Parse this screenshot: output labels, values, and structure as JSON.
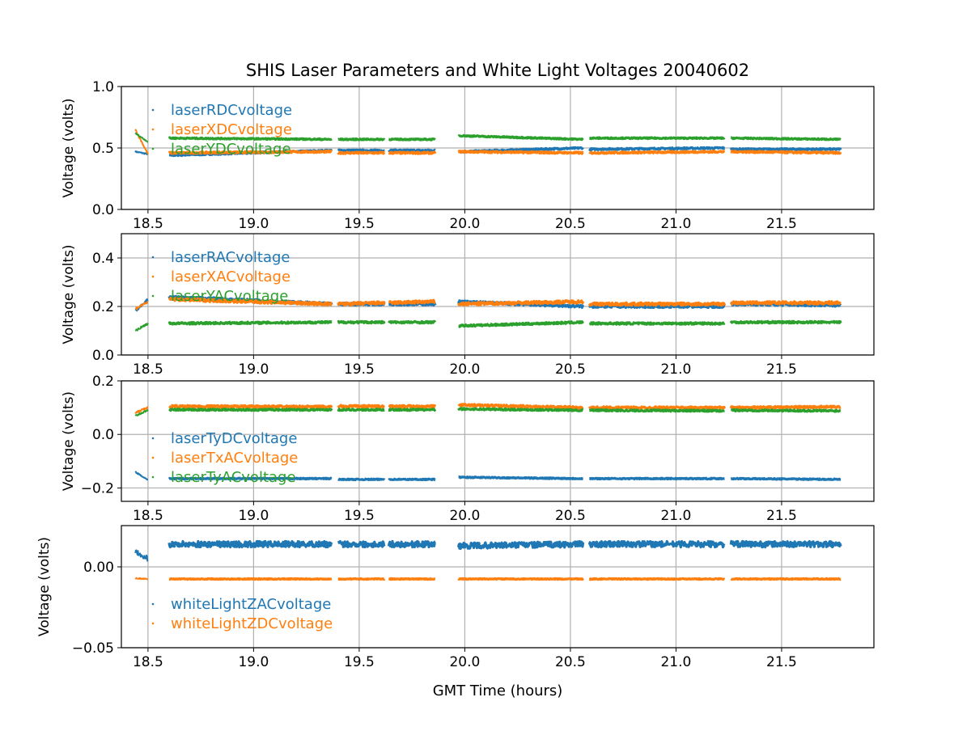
{
  "chart_data": {
    "type": "scatter",
    "title": "SHIS Laser Parameters and White Light Voltages 20040602",
    "xlabel": "GMT Time (hours)",
    "xlim": [
      18.374,
      21.937
    ],
    "xticks": [
      "18.5",
      "19.0",
      "19.5",
      "20.0",
      "20.5",
      "21.0",
      "21.5"
    ],
    "xtick_values": [
      18.5,
      19.0,
      19.5,
      20.0,
      20.5,
      21.0,
      21.5
    ],
    "grid": true,
    "legend_position": "upper-left",
    "segments": [
      [
        18.44,
        18.5
      ],
      [
        18.6,
        19.37
      ],
      [
        19.4,
        19.62
      ],
      [
        19.64,
        19.86
      ],
      [
        19.97,
        20.56
      ],
      [
        20.59,
        21.23
      ],
      [
        21.26,
        21.78
      ]
    ],
    "panels": [
      {
        "ylabel": "Voltage (volts)",
        "ylim": [
          0.0,
          1.0
        ],
        "yticks": [
          "0.0",
          "0.5",
          "1.0"
        ],
        "ytick_values": [
          0.0,
          0.5,
          1.0
        ],
        "series": [
          {
            "name": "laserRDCvoltage",
            "color": "#1f77b4",
            "values": [
              [
                0.47,
                0.45
              ],
              [
                0.44,
                0.48
              ],
              [
                0.48,
                0.48
              ],
              [
                0.48,
                0.48
              ],
              [
                0.47,
                0.5
              ],
              [
                0.49,
                0.5
              ],
              [
                0.49,
                0.49
              ]
            ],
            "noise": 0.006
          },
          {
            "name": "laserXDCvoltage",
            "color": "#ff7f0e",
            "values": [
              [
                0.65,
                0.45
              ],
              [
                0.46,
                0.47
              ],
              [
                0.46,
                0.46
              ],
              [
                0.46,
                0.46
              ],
              [
                0.47,
                0.46
              ],
              [
                0.46,
                0.47
              ],
              [
                0.47,
                0.46
              ]
            ],
            "noise": 0.007
          },
          {
            "name": "laserYDCvoltage",
            "color": "#2ca02c",
            "values": [
              [
                0.62,
                0.55
              ],
              [
                0.58,
                0.57
              ],
              [
                0.57,
                0.57
              ],
              [
                0.57,
                0.57
              ],
              [
                0.6,
                0.57
              ],
              [
                0.58,
                0.58
              ],
              [
                0.58,
                0.57
              ]
            ],
            "noise": 0.005
          }
        ]
      },
      {
        "ylabel": "Voltage (volts)",
        "ylim": [
          0.0,
          0.5
        ],
        "yticks": [
          "0.0",
          "0.2",
          "0.4"
        ],
        "ytick_values": [
          0.0,
          0.2,
          0.4
        ],
        "series": [
          {
            "name": "laserRACvoltage",
            "color": "#1f77b4",
            "values": [
              [
                0.18,
                0.23
              ],
              [
                0.24,
                0.21
              ],
              [
                0.21,
                0.21
              ],
              [
                0.21,
                0.21
              ],
              [
                0.22,
                0.2
              ],
              [
                0.2,
                0.2
              ],
              [
                0.21,
                0.205
              ]
            ],
            "noise": 0.005
          },
          {
            "name": "laserXACvoltage",
            "color": "#ff7f0e",
            "values": [
              [
                0.19,
                0.22
              ],
              [
                0.23,
                0.21
              ],
              [
                0.21,
                0.215
              ],
              [
                0.215,
                0.22
              ],
              [
                0.21,
                0.22
              ],
              [
                0.21,
                0.21
              ],
              [
                0.215,
                0.215
              ]
            ],
            "noise": 0.006
          },
          {
            "name": "laserYACvoltage",
            "color": "#2ca02c",
            "values": [
              [
                0.1,
                0.13
              ],
              [
                0.13,
                0.135
              ],
              [
                0.135,
                0.135
              ],
              [
                0.135,
                0.135
              ],
              [
                0.12,
                0.135
              ],
              [
                0.13,
                0.13
              ],
              [
                0.135,
                0.135
              ]
            ],
            "noise": 0.004
          }
        ]
      },
      {
        "ylabel": "Voltage (volts)",
        "ylim": [
          -0.25,
          0.2
        ],
        "yticks": [
          "−0.2",
          "0.0",
          "0.2"
        ],
        "ytick_values": [
          -0.2,
          0.0,
          0.2
        ],
        "series": [
          {
            "name": "laserTyDCvoltage",
            "color": "#1f77b4",
            "values": [
              [
                -0.14,
                -0.17
              ],
              [
                -0.165,
                -0.165
              ],
              [
                -0.168,
                -0.168
              ],
              [
                -0.168,
                -0.168
              ],
              [
                -0.16,
                -0.165
              ],
              [
                -0.165,
                -0.165
              ],
              [
                -0.165,
                -0.168
              ]
            ],
            "noise": 0.002
          },
          {
            "name": "laserTxACvoltage",
            "color": "#ff7f0e",
            "values": [
              [
                0.08,
                0.1
              ],
              [
                0.105,
                0.103
              ],
              [
                0.105,
                0.105
              ],
              [
                0.105,
                0.105
              ],
              [
                0.11,
                0.1
              ],
              [
                0.1,
                0.1
              ],
              [
                0.1,
                0.103
              ]
            ],
            "noise": 0.004
          },
          {
            "name": "laserTyACvoltage",
            "color": "#2ca02c",
            "values": [
              [
                0.07,
                0.09
              ],
              [
                0.092,
                0.092
              ],
              [
                0.092,
                0.092
              ],
              [
                0.092,
                0.092
              ],
              [
                0.095,
                0.09
              ],
              [
                0.09,
                0.088
              ],
              [
                0.09,
                0.088
              ]
            ],
            "noise": 0.003
          }
        ]
      },
      {
        "ylabel": "Voltage (volts)",
        "ylim": [
          -0.05,
          0.0255
        ],
        "yticks": [
          "−0.05",
          "0.00"
        ],
        "ytick_values": [
          -0.05,
          0.0
        ],
        "series": [
          {
            "name": "whiteLightZACvoltage",
            "color": "#1f77b4",
            "values": [
              [
                0.01,
                0.005
              ],
              [
                0.014,
                0.014
              ],
              [
                0.014,
                0.014
              ],
              [
                0.014,
                0.014
              ],
              [
                0.013,
                0.014
              ],
              [
                0.014,
                0.014
              ],
              [
                0.014,
                0.014
              ]
            ],
            "noise": 0.0018
          },
          {
            "name": "whiteLightZDCvoltage",
            "color": "#ff7f0e",
            "values": [
              [
                -0.007,
                -0.0075
              ],
              [
                -0.0075,
                -0.0075
              ],
              [
                -0.0075,
                -0.0075
              ],
              [
                -0.0075,
                -0.0075
              ],
              [
                -0.0075,
                -0.0075
              ],
              [
                -0.0075,
                -0.0075
              ],
              [
                -0.0075,
                -0.0075
              ]
            ],
            "noise": 0.0003
          }
        ]
      }
    ]
  }
}
